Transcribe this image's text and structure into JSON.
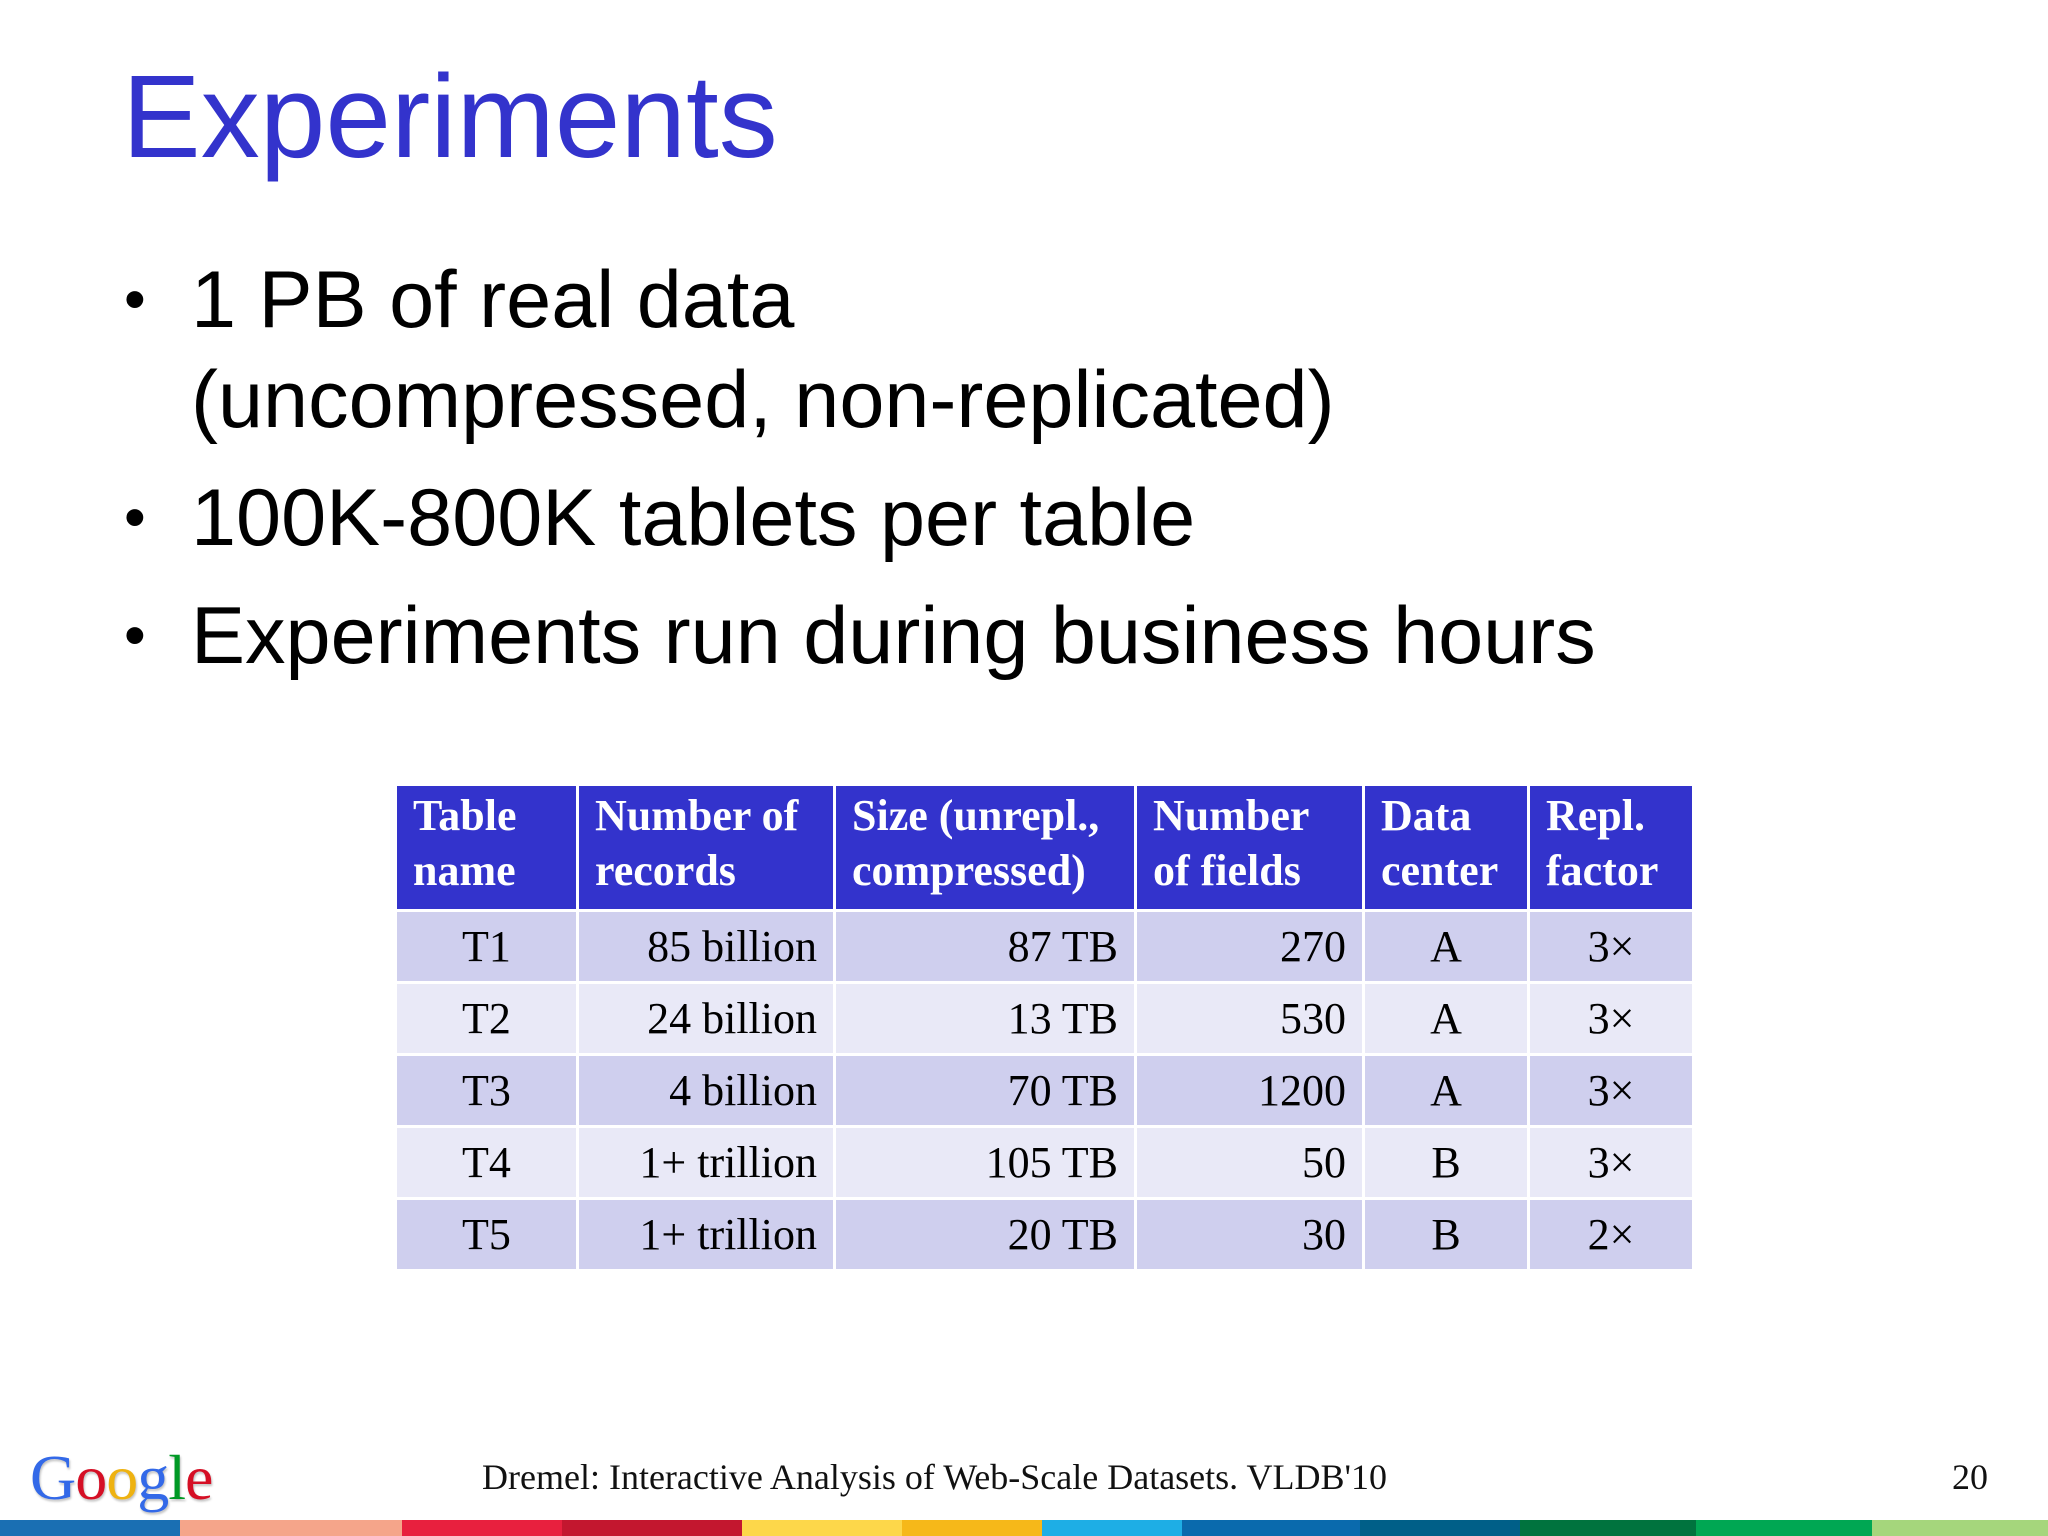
{
  "slide": {
    "title": "Experiments",
    "bullets": [
      {
        "text": "1 PB of real data",
        "continuation": "(uncompressed, non-replicated)"
      },
      {
        "text": "100K-800K tablets per table",
        "continuation": ""
      },
      {
        "text": "Experiments run during business hours",
        "continuation": ""
      }
    ]
  },
  "table": {
    "headers": [
      {
        "line1": "Table",
        "line2": "name"
      },
      {
        "line1": "Number of",
        "line2": "records"
      },
      {
        "line1": "Size (unrepl.,",
        "line2": "compressed)"
      },
      {
        "line1": "Number",
        "line2": "of fields"
      },
      {
        "line1": "Data",
        "line2": "center"
      },
      {
        "line1": "Repl.",
        "line2": "factor"
      }
    ],
    "rows": [
      [
        "T1",
        "85 billion",
        "87 TB",
        "270",
        "A",
        "3×"
      ],
      [
        "T2",
        "24 billion",
        "13 TB",
        "530",
        "A",
        "3×"
      ],
      [
        "T3",
        "4 billion",
        "70 TB",
        "1200",
        "A",
        "3×"
      ],
      [
        "T4",
        "1+ trillion",
        "105 TB",
        "50",
        "B",
        "3×"
      ],
      [
        "T5",
        "1+ trillion",
        "20 TB",
        "30",
        "B",
        "2×"
      ]
    ]
  },
  "footer": {
    "logo": {
      "text": "Google",
      "letter_colors": [
        "#3369e8",
        "#d50f25",
        "#eeb211",
        "#3369e8",
        "#009925",
        "#d50f25"
      ]
    },
    "citation": "Dremel: Interactive Analysis of Web-Scale Datasets. VLDB'10",
    "page_number": "20"
  },
  "colors": {
    "title": "#3333cc",
    "table_header": "#3333cc",
    "row_odd": "#cfcfee",
    "row_even": "#e9e9f7",
    "bottom_bar": [
      "#1a6fb3",
      "#f5a58a",
      "#e8203e",
      "#c3172f",
      "#fdd74a",
      "#f6b819",
      "#1eaee5",
      "#0a6aad",
      "#005f88",
      "#00733e",
      "#00a753",
      "#a5d67c"
    ]
  }
}
